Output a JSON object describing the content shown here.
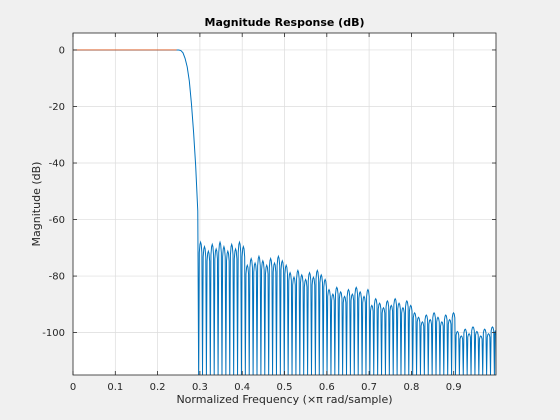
{
  "chart_data": {
    "type": "line",
    "title": "Magnitude Response (dB)",
    "xlabel": "Normalized Frequency (×π rad/sample)",
    "ylabel": "Magnitude (dB)",
    "xlim": [
      0,
      1.0
    ],
    "ylim": [
      -115,
      6
    ],
    "xticks": [
      0,
      0.1,
      0.2,
      0.3,
      0.4,
      0.5,
      0.6,
      0.7,
      0.8,
      0.9
    ],
    "xtick_labels": [
      "0",
      "0.1",
      "0.2",
      "0.3",
      "0.4",
      "0.5",
      "0.6",
      "0.7",
      "0.8",
      "0.9"
    ],
    "yticks": [
      0,
      -20,
      -40,
      -60,
      -80,
      -100
    ],
    "ytick_labels": [
      "0",
      "-20",
      "-40",
      "-60",
      "-80",
      "-100"
    ],
    "grid": true,
    "line_color": "#0072bd",
    "series": [
      {
        "passband_edge": 0.255,
        "stopband_edge": 0.297,
        "x": [
          0,
          0.25,
          0.255,
          0.26,
          0.265,
          0.27,
          0.275,
          0.28,
          0.285,
          0.29,
          0.295,
          0.297
        ],
        "values": [
          0,
          0,
          -0.2,
          -1,
          -3,
          -6,
          -11,
          -19,
          -29,
          -41,
          -57,
          -115
        ],
        "stopband_levels": [
          {
            "x_range": [
              0.297,
              0.4
            ],
            "peak": -68
          },
          {
            "x_range": [
              0.4,
              0.5
            ],
            "peak": -73
          },
          {
            "x_range": [
              0.5,
              0.6
            ],
            "peak": -78
          },
          {
            "x_range": [
              0.6,
              0.7
            ],
            "peak": -84
          },
          {
            "x_range": [
              0.7,
              0.8
            ],
            "peak": -88
          },
          {
            "x_range": [
              0.8,
              0.9
            ],
            "peak": -93
          },
          {
            "x_range": [
              0.9,
              1.0
            ],
            "peak": -98
          }
        ]
      }
    ]
  }
}
